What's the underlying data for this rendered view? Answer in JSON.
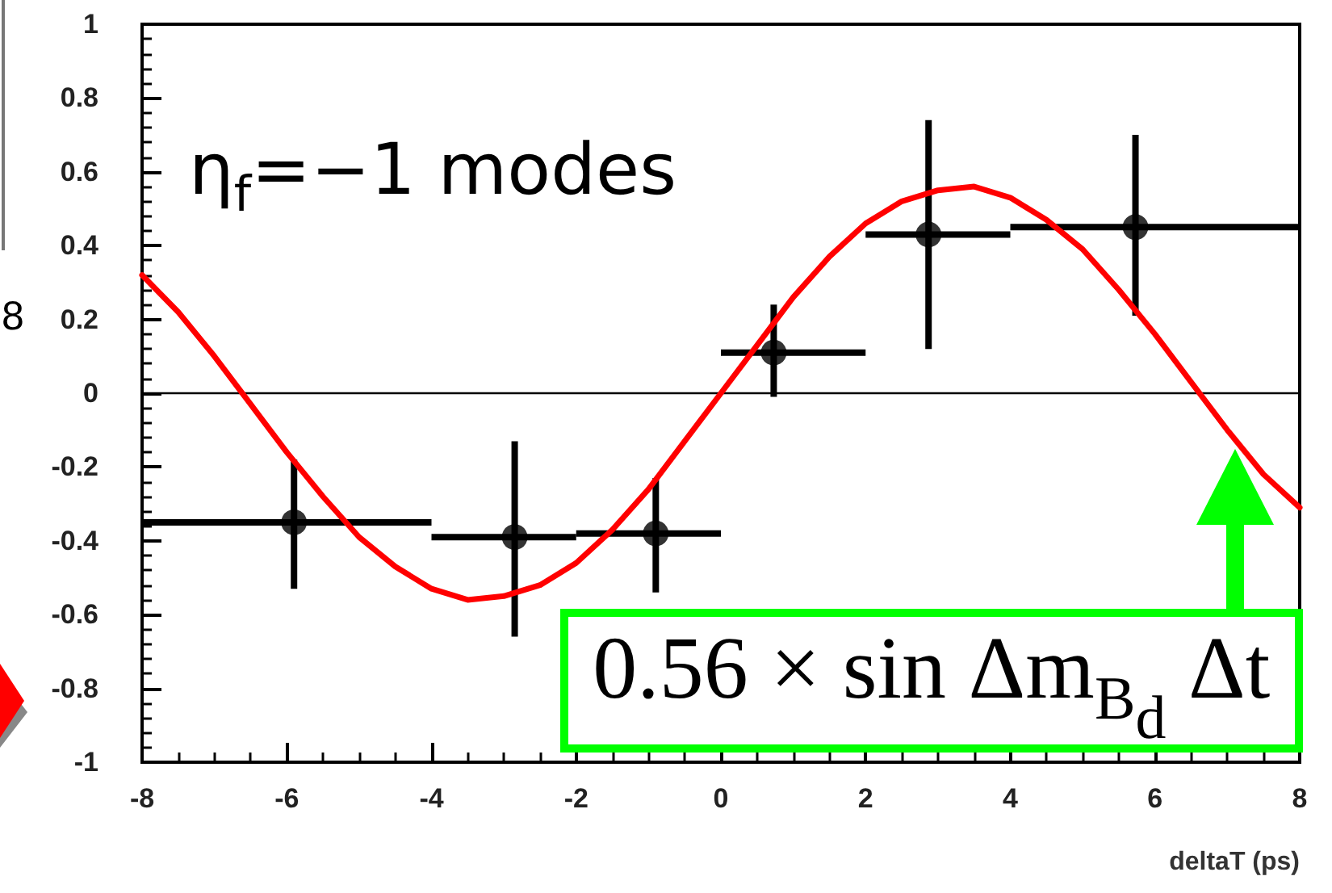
{
  "chart_data": {
    "type": "scatter",
    "xlabel": "deltaT (ps)",
    "xlim": [
      -8,
      8
    ],
    "xticks": [
      -8,
      -6,
      -4,
      -2,
      0,
      2,
      4,
      6,
      8
    ],
    "ylim": [
      -1,
      1
    ],
    "yticks": [
      -1,
      -0.8,
      -0.6,
      -0.4,
      -0.2,
      0,
      0.2,
      0.4,
      0.6,
      0.8,
      1
    ],
    "marker": "circle",
    "series": [
      {
        "type": "scatter",
        "color": "#000000",
        "x": [
          -5.9,
          -2.85,
          -0.9,
          0.73,
          2.87,
          5.73
        ],
        "values": [
          -0.35,
          -0.39,
          -0.38,
          0.11,
          0.43,
          0.45
        ],
        "errors": [
          [
            -0.53,
            -0.18
          ],
          [
            -0.66,
            -0.13
          ],
          [
            -0.54,
            -0.23
          ],
          [
            -0.01,
            0.24
          ],
          [
            0.12,
            0.74
          ],
          [
            0.21,
            0.7
          ]
        ],
        "xerrors": [
          [
            -8,
            -4
          ],
          [
            -4,
            -2
          ],
          [
            -2,
            0
          ],
          [
            0,
            2
          ],
          [
            2,
            4
          ],
          [
            4,
            8
          ]
        ]
      },
      {
        "type": "line",
        "color": "#ff0000",
        "marker": "none",
        "line_style": "solid",
        "x": [
          -8,
          -7.5,
          -7,
          -6.5,
          -6,
          -5.5,
          -5,
          -4.5,
          -4,
          -3.5,
          -3,
          -2.5,
          -2,
          -1.5,
          -1,
          -0.5,
          0,
          0.5,
          1,
          1.5,
          2,
          2.5,
          3,
          3.5,
          4,
          4.5,
          5,
          5.5,
          6,
          6.5,
          7,
          7.5,
          8
        ],
        "values": [
          0.32,
          0.22,
          0.1,
          -0.03,
          -0.16,
          -0.28,
          -0.39,
          -0.47,
          -0.53,
          -0.56,
          -0.55,
          -0.52,
          -0.46,
          -0.37,
          -0.26,
          -0.13,
          0,
          0.13,
          0.26,
          0.37,
          0.46,
          0.52,
          0.55,
          0.56,
          0.53,
          0.47,
          0.39,
          0.28,
          0.16,
          0.03,
          -0.1,
          -0.22,
          -0.31
        ]
      }
    ],
    "ref_lines": [
      {
        "axis": "y",
        "value": 0,
        "color": "#000000"
      }
    ],
    "annotations": [
      "η$_{f}$=−1  modes",
      "8",
      {
        "text": "0.56 × sin Δm$_{B}$$_{d}$ Δt",
        "x": 7.1,
        "y": -0.15
      }
    ]
  }
}
